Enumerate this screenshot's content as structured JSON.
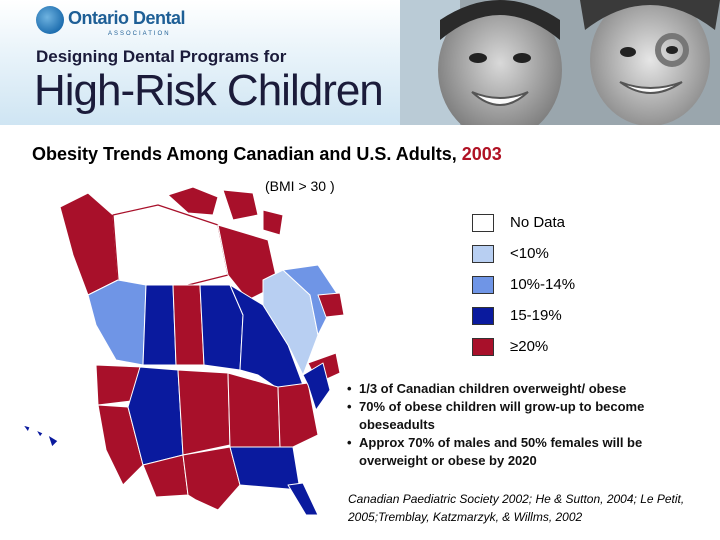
{
  "header": {
    "logo_name": "Ontario Dental",
    "logo_sub": "ASSOCIATION",
    "subtitle": "Designing Dental Programs for",
    "title": "High-Risk Children"
  },
  "map_title": {
    "text": "Obesity Trends Among Canadian and U.S. Adults,",
    "year": "2003"
  },
  "bmi_note": "(BMI > 30 )",
  "legend": [
    {
      "label": "No Data",
      "color": "#ffffff"
    },
    {
      "label": "<10%",
      "color": "#b8cff2"
    },
    {
      "label": "10%-14%",
      "color": "#6f95e6"
    },
    {
      "label": "15-19%",
      "color": "#0a1a9e"
    },
    {
      "label": "≥20%",
      "color": "#a8102a"
    }
  ],
  "bullets": [
    "1/3 of Canadian children overweight/ obese",
    "70% of obese children will grow-up to become obeseadults",
    "Approx 70% of males and 50% females will be overweight or obese by 2020"
  ],
  "citation": "Canadian Paediatric Society 2002; He & Sutton, 2004; Le Petit, 2005;Tremblay, Katzmarzyk, & Willms, 2002",
  "colors": {
    "no_data": "#ffffff",
    "lt10": "#b8cff2",
    "p10_14": "#6f95e6",
    "p15_19": "#0a1a9e",
    "ge20": "#a8102a"
  },
  "icons": {
    "logo": "ontario-dental-logo-icon",
    "photo": "children-photo"
  }
}
